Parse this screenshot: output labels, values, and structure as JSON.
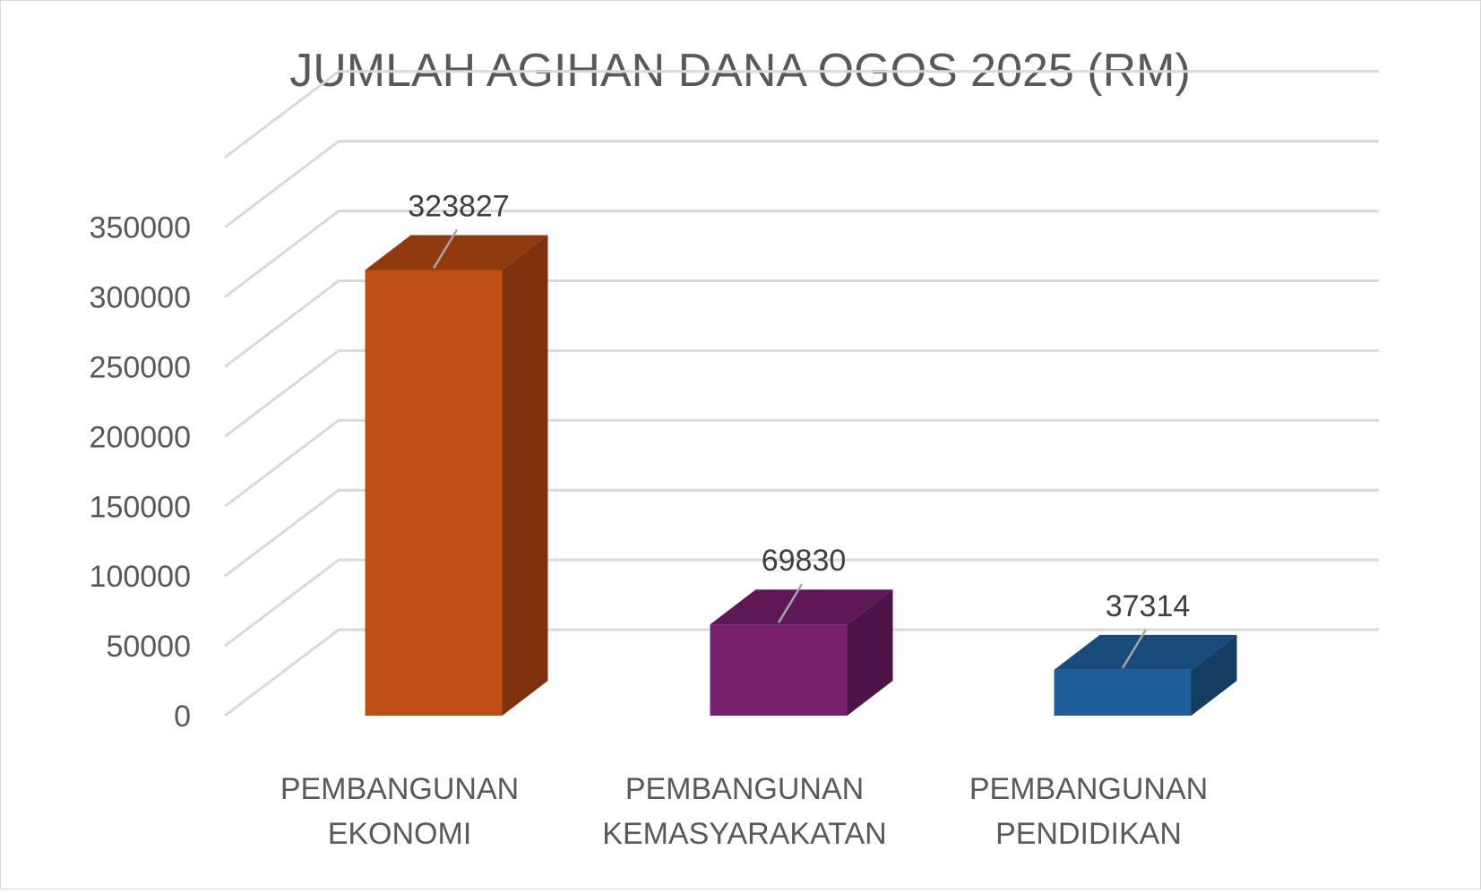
{
  "chart_data": {
    "type": "bar",
    "title": "JUMLAH AGIHAN DANA OGOS 2025 (RM)",
    "xlabel": "",
    "ylabel": "",
    "ylim": [
      0,
      350000
    ],
    "yticks": [
      0,
      50000,
      100000,
      150000,
      200000,
      250000,
      300000,
      350000
    ],
    "yticks_extra_gridline": 400000,
    "grid": true,
    "legend": "none",
    "three_d": true,
    "categories": [
      [
        "PEMBANGUNAN",
        "EKONOMI"
      ],
      [
        "PEMBANGUNAN",
        "KEMASYARAKATAN"
      ],
      [
        "PEMBANGUNAN",
        "PENDIDIKAN"
      ]
    ],
    "values": [
      323827,
      69830,
      37314
    ],
    "data_labels": [
      "323827",
      "69830",
      "37314"
    ],
    "colors": [
      {
        "front": "#c04f15",
        "side": "#7f300d",
        "top": "#913a10"
      },
      {
        "front": "#78206e",
        "side": "#4f1447",
        "top": "#5e1856"
      },
      {
        "front": "#1f5f99",
        "side": "#143d64",
        "top": "#184b7a"
      }
    ],
    "text_color": "#595959",
    "gridline_color": "#d9d9d9"
  }
}
